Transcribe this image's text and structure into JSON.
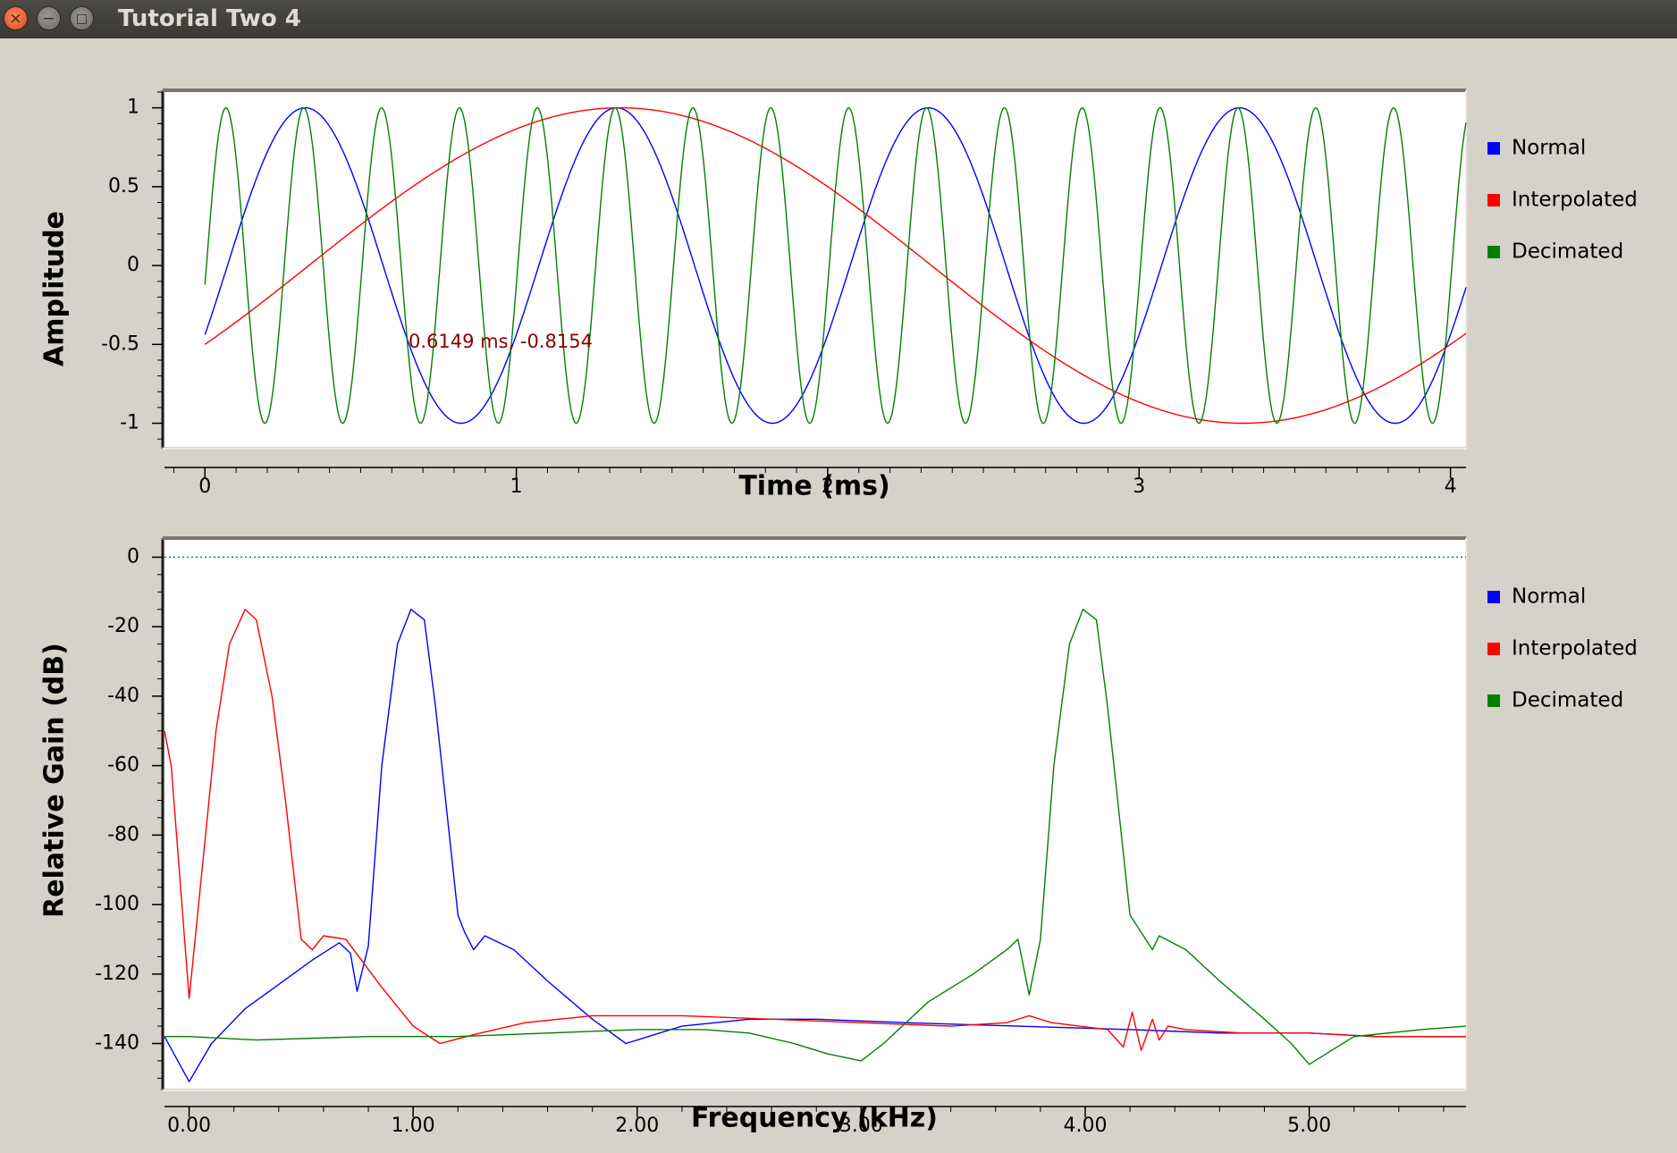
{
  "window": {
    "title": "Tutorial Two 4"
  },
  "legend_items": [
    "Normal",
    "Interpolated",
    "Decimated"
  ],
  "colors": {
    "normal": "#0000ff",
    "interpolated": "#ff0000",
    "decimated": "#008000",
    "marker_text": "#8b0000",
    "reference_line": "#008080"
  },
  "chart_data": [
    {
      "type": "line",
      "title": "",
      "xlabel": "Time (ms)",
      "ylabel": "Amplitude",
      "xlim": [
        -0.13,
        4.05
      ],
      "ylim": [
        -1.15,
        1.1
      ],
      "xticks": [
        0,
        1,
        2,
        3,
        4
      ],
      "xtick_labels": [
        "0",
        "1",
        "2",
        "3",
        "4"
      ],
      "yticks": [
        1,
        0.5,
        0,
        -0.5,
        -1
      ],
      "ytick_labels": [
        "1",
        "0.5",
        "0",
        "-0.5",
        "-1"
      ],
      "legend": "right",
      "grid": false,
      "marker_label": {
        "text": "0.6149 ms, -0.8154",
        "x": 0.65,
        "y": -0.65
      },
      "series": [
        {
          "name": "Normal",
          "type": "sine",
          "frequency_khz": 1.0,
          "phase_deg": -26,
          "x_start": 0,
          "x_end": 4.05
        },
        {
          "name": "Interpolated",
          "type": "sine",
          "frequency_khz": 0.25,
          "phase_deg": -30,
          "x_start": 0,
          "x_end": 4.05
        },
        {
          "name": "Decimated",
          "type": "sine",
          "frequency_khz": 4.0,
          "phase_deg": -7,
          "x_start": 0,
          "x_end": 4.05
        }
      ]
    },
    {
      "type": "line",
      "title": "",
      "xlabel": "Frequency (kHz)",
      "ylabel": "Relative Gain (dB)",
      "xlim": [
        -0.11,
        5.7
      ],
      "ylim": [
        -153,
        5
      ],
      "xticks": [
        0,
        1,
        2,
        3,
        4,
        5
      ],
      "xtick_labels": [
        "0.00",
        "1.00",
        "2.00",
        "3.00",
        "4.00",
        "5.00"
      ],
      "yticks": [
        0,
        -20,
        -40,
        -60,
        -80,
        -100,
        -120,
        -140
      ],
      "ytick_labels": [
        "0",
        "-20",
        "-40",
        "-60",
        "-80",
        "-100",
        "-120",
        "-140"
      ],
      "legend": "right",
      "grid": false,
      "reference_line_y": 0,
      "series": [
        {
          "name": "Normal",
          "x": [
            -0.11,
            0.0,
            0.1,
            0.25,
            0.4,
            0.55,
            0.67,
            0.72,
            0.75,
            0.8,
            0.86,
            0.93,
            0.99,
            1.05,
            1.1,
            1.2,
            1.23,
            1.27,
            1.32,
            1.45,
            1.6,
            1.8,
            1.95,
            2.05,
            2.2,
            2.5,
            2.8,
            3.2,
            3.7,
            4.2,
            4.6,
            5.0,
            5.3,
            5.7
          ],
          "y": [
            -138,
            -151,
            -140,
            -130,
            -123,
            -116,
            -111,
            -114,
            -125,
            -112,
            -60,
            -25,
            -15,
            -18,
            -43,
            -103,
            -108,
            -113,
            -109,
            -113,
            -122,
            -133,
            -140,
            -138,
            -135,
            -133,
            -133,
            -134,
            -135,
            -136,
            -137,
            -137,
            -138,
            -138
          ]
        },
        {
          "name": "Interpolated",
          "x": [
            -0.11,
            -0.08,
            0.0,
            0.05,
            0.12,
            0.18,
            0.25,
            0.3,
            0.37,
            0.43,
            0.5,
            0.55,
            0.6,
            0.7,
            0.85,
            1.0,
            1.12,
            1.3,
            1.5,
            1.8,
            2.2,
            2.6,
            3.0,
            3.4,
            3.65,
            3.75,
            3.85,
            4.1,
            4.17,
            4.21,
            4.25,
            4.3,
            4.33,
            4.37,
            4.45,
            4.7,
            5.0,
            5.3,
            5.7
          ],
          "y": [
            -50,
            -60,
            -127,
            -95,
            -50,
            -25,
            -15,
            -18,
            -40,
            -70,
            -110,
            -113,
            -109,
            -110,
            -123,
            -135,
            -140,
            -137,
            -134,
            -132,
            -132,
            -133,
            -134,
            -135,
            -134,
            -132,
            -134,
            -136,
            -141,
            -131,
            -142,
            -133,
            -139,
            -135,
            -136,
            -137,
            -137,
            -138,
            -138
          ]
        },
        {
          "name": "Decimated",
          "x": [
            -0.11,
            0.0,
            0.3,
            0.8,
            1.2,
            1.6,
            2.0,
            2.3,
            2.5,
            2.7,
            2.85,
            3.0,
            3.1,
            3.3,
            3.5,
            3.65,
            3.7,
            3.75,
            3.8,
            3.86,
            3.93,
            3.99,
            4.05,
            4.1,
            4.2,
            4.25,
            4.3,
            4.33,
            4.45,
            4.6,
            4.8,
            4.92,
            5.0,
            5.2,
            5.5,
            5.7
          ],
          "y": [
            -138,
            -138,
            -139,
            -138,
            -138,
            -137,
            -136,
            -136,
            -137,
            -140,
            -143,
            -145,
            -140,
            -128,
            -120,
            -113,
            -110,
            -126,
            -110,
            -60,
            -25,
            -15,
            -18,
            -43,
            -103,
            -108,
            -113,
            -109,
            -113,
            -122,
            -133,
            -140,
            -146,
            -138,
            -136,
            -135
          ]
        }
      ]
    }
  ]
}
